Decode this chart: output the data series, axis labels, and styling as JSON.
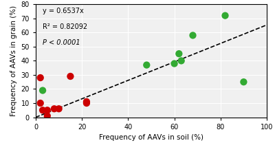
{
  "red_x": [
    2,
    2,
    3,
    5,
    5,
    8,
    10,
    15,
    22,
    22
  ],
  "red_y": [
    10,
    28,
    5,
    5,
    1,
    6,
    6,
    29,
    10,
    11
  ],
  "green_x": [
    3,
    48,
    60,
    62,
    63,
    68,
    82,
    90
  ],
  "green_y": [
    19,
    37,
    38,
    45,
    40,
    58,
    72,
    25
  ],
  "red_color": "#cc0000",
  "green_color": "#33aa33",
  "line_slope": 0.6537,
  "xlabel": "Frequency of AAVs in soil (%)",
  "ylabel": "Frequency of AAVs in grain (%)",
  "xlim": [
    0,
    100
  ],
  "ylim": [
    0,
    80
  ],
  "xticks": [
    0,
    20,
    40,
    60,
    80,
    100
  ],
  "yticks": [
    0,
    10,
    20,
    30,
    40,
    50,
    60,
    70,
    80
  ],
  "annotation_line1": "y = 0.6537x",
  "annotation_line2": "R² = 0.82092",
  "annotation_line3": "P < 0.0001",
  "marker_size": 55,
  "background_color": "#f0f0f0",
  "grid_color": "#ffffff"
}
